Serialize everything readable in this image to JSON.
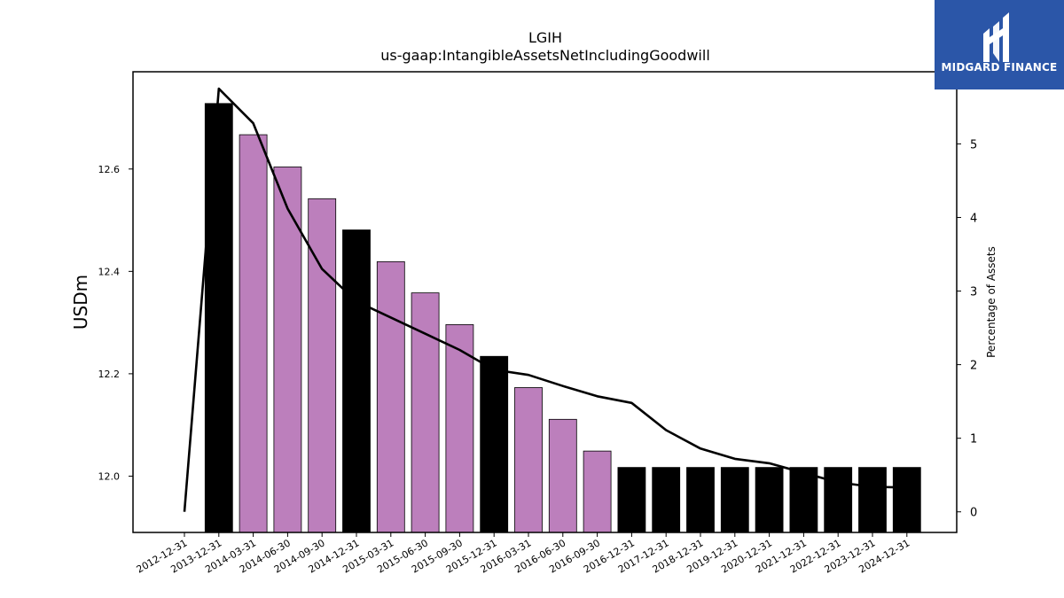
{
  "brand": {
    "name": "MIDGARD FINANCE",
    "bg_color": "#2b56a8",
    "icon": "midgard-logo-icon"
  },
  "chart_data": {
    "type": "bar",
    "title": "LGIH",
    "subtitle": "us-gaap:IntangibleAssetsNetIncludingGoodwill",
    "ylabel": "USDm",
    "y2label": "Percentage of Assets",
    "ylim": [
      11.89,
      12.79
    ],
    "y2lim": [
      -0.28,
      5.98
    ],
    "yticks": [
      "12.0",
      "12.2",
      "12.4",
      "12.6"
    ],
    "y2ticks": [
      "0",
      "1",
      "2",
      "3",
      "4",
      "5"
    ],
    "colors": {
      "annual": "#000000",
      "quarterly": "#bc7fbc",
      "line": "#000000"
    },
    "categories": [
      "2012-12-31",
      "2013-12-31",
      "2014-03-31",
      "2014-06-30",
      "2014-09-30",
      "2014-12-31",
      "2015-03-31",
      "2015-06-30",
      "2015-09-30",
      "2015-12-31",
      "2016-03-31",
      "2016-06-30",
      "2016-09-30",
      "2016-12-31",
      "2017-12-31",
      "2018-12-31",
      "2019-12-31",
      "2020-12-31",
      "2021-12-31",
      "2022-12-31",
      "2023-12-31",
      "2024-12-31"
    ],
    "series": [
      {
        "type": "bar",
        "values": [
          null,
          12.728,
          12.667,
          12.604,
          12.542,
          12.481,
          12.419,
          12.358,
          12.296,
          12.234,
          12.173,
          12.111,
          12.049,
          12.017,
          12.017,
          12.017,
          12.017,
          12.017,
          12.017,
          12.017,
          12.017,
          12.017
        ],
        "kinds": [
          "none",
          "annual",
          "quarterly",
          "quarterly",
          "quarterly",
          "annual",
          "quarterly",
          "quarterly",
          "quarterly",
          "annual",
          "quarterly",
          "quarterly",
          "quarterly",
          "annual",
          "annual",
          "annual",
          "annual",
          "annual",
          "annual",
          "annual",
          "annual",
          "annual"
        ]
      },
      {
        "type": "line",
        "axis": "right",
        "values": [
          0.0,
          5.75,
          5.28,
          4.12,
          3.3,
          2.86,
          2.64,
          2.42,
          2.2,
          1.93,
          1.86,
          1.71,
          1.57,
          1.48,
          1.11,
          0.86,
          0.72,
          0.66,
          0.53,
          0.4,
          0.34,
          0.33
        ]
      }
    ]
  }
}
